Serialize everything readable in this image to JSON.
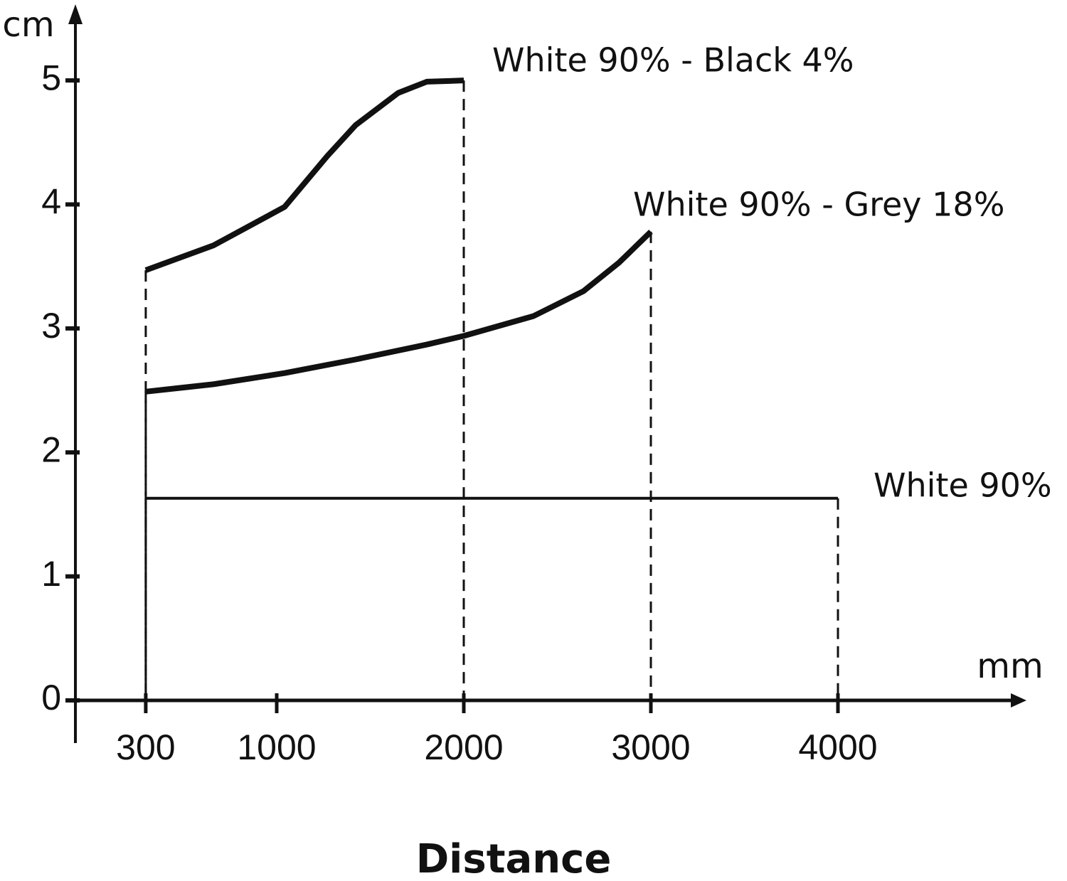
{
  "chart_data": {
    "type": "line",
    "x_label": "Distance",
    "x_unit": "mm",
    "y_unit": "cm",
    "xlim": [
      0,
      5000
    ],
    "ylim": [
      0,
      5.5
    ],
    "xticks": [
      300,
      1000,
      2000,
      3000,
      4000
    ],
    "yticks": [
      0,
      1,
      2,
      3,
      4,
      5
    ],
    "series": [
      {
        "name": "White 90% - Black 4%",
        "color": "#111111",
        "x": [
          300,
          662,
          1042,
          1270,
          1422,
          1650,
          1802,
          2000
        ],
        "values": [
          3.47,
          3.67,
          3.98,
          4.39,
          4.64,
          4.9,
          4.99,
          5.0
        ]
      },
      {
        "name": "White 90% - Grey 18%",
        "color": "#111111",
        "x": [
          300,
          662,
          1042,
          1422,
          1802,
          2000,
          2373,
          2639,
          2829,
          3000
        ],
        "values": [
          2.49,
          2.55,
          2.64,
          2.75,
          2.87,
          2.94,
          3.1,
          3.3,
          3.53,
          3.78
        ]
      },
      {
        "name": "White 90%",
        "color": "#111111",
        "x": [
          300,
          4000
        ],
        "values": [
          1.63,
          1.63
        ]
      }
    ]
  }
}
